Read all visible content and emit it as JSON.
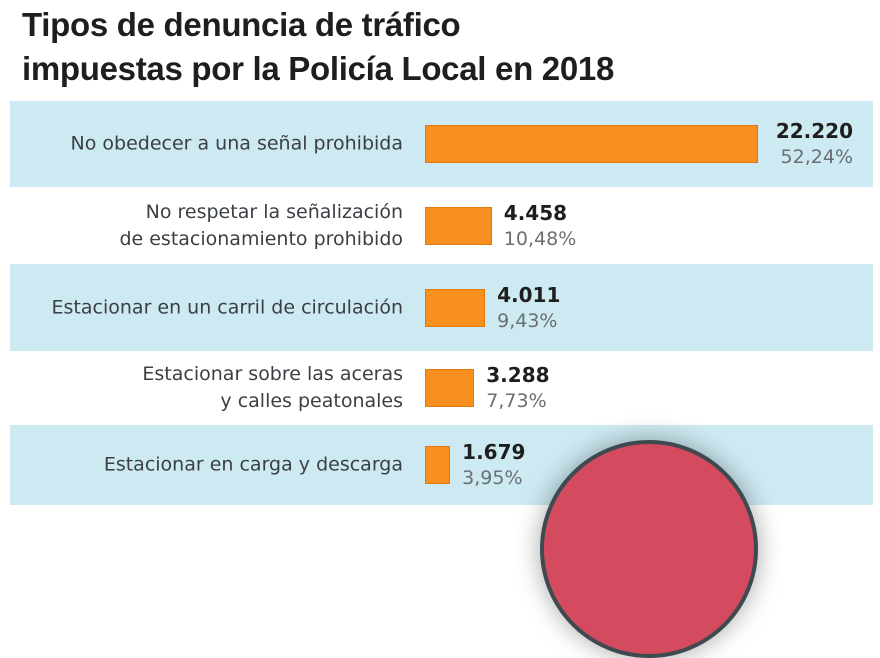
{
  "chart_data": {
    "type": "bar",
    "orientation": "horizontal",
    "title_lines": [
      "Tipos de denuncia de tráfico",
      "impuestas por la Policía Local en 2018"
    ],
    "categories": [
      [
        "No obedecer a una señal prohibida"
      ],
      [
        "No respetar la señalización",
        "de estacionamiento prohibido"
      ],
      [
        "Estacionar en un carril de circulación"
      ],
      [
        "Estacionar sobre las aceras",
        "y calles peatonales"
      ],
      [
        "Estacionar en carga y descarga"
      ]
    ],
    "values": [
      22220,
      4458,
      4011,
      3288,
      1679
    ],
    "value_labels": [
      "22.220",
      "4.458",
      "4.011",
      "3.288",
      "1.679"
    ],
    "percent_labels": [
      "52,24%",
      "10,48%",
      "9,43%",
      "7,73%",
      "3,95%"
    ],
    "bar_color": "#f7901e",
    "band_color": "#cde9f2"
  }
}
